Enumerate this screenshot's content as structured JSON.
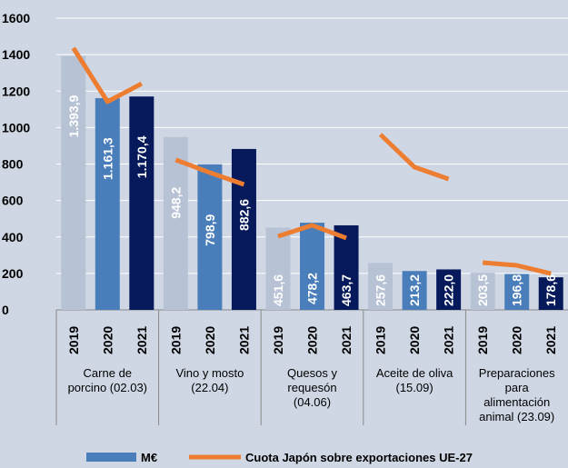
{
  "chart_data": {
    "type": "bar",
    "categories": [
      [
        "Carne de",
        "porcino (02.03)"
      ],
      [
        "Vino y mosto",
        "(22.04)"
      ],
      [
        "Quesos y",
        "requesón",
        "(04.06)"
      ],
      [
        "Aceite de  oliva",
        "(15.09)"
      ],
      [
        "Preparaciones",
        "para",
        "alimentación",
        "animal  (23.09)"
      ]
    ],
    "years": [
      "2019",
      "2020",
      "2021"
    ],
    "year_colors": [
      "#b7c2d4",
      "#4a7ebb",
      "#06195a"
    ],
    "series": [
      {
        "name": "M€",
        "color": "#4a7ebb",
        "values": [
          [
            1393.9,
            1161.3,
            1170.4
          ],
          [
            948.2,
            798.9,
            882.6
          ],
          [
            451.6,
            478.2,
            463.7
          ],
          [
            257.6,
            213.2,
            222.0
          ],
          [
            203.5,
            196.8,
            178.6
          ]
        ],
        "value_labels": [
          [
            "1.393,9",
            "1.161,3",
            "1.170,4"
          ],
          [
            "948,2",
            "798,9",
            "882,6"
          ],
          [
            "451,6",
            "478,2",
            "463,7"
          ],
          [
            "257,6",
            "213,2",
            "222,0"
          ],
          [
            "203,5",
            "196,8",
            "178,6"
          ]
        ]
      },
      {
        "name": "Cuota Japón sobre exportaciones UE-27",
        "color": "#ed7d31",
        "type": "line",
        "values": [
          [
            1436,
            1142,
            1241
          ],
          [
            823,
            753,
            688
          ],
          [
            404,
            464,
            394
          ],
          [
            962,
            783,
            718
          ],
          [
            259,
            244,
            199
          ]
        ]
      }
    ],
    "ylim": [
      0,
      1600
    ],
    "yticks": [
      0,
      200,
      400,
      600,
      800,
      1000,
      1200,
      1400,
      1600
    ],
    "grid": true
  }
}
